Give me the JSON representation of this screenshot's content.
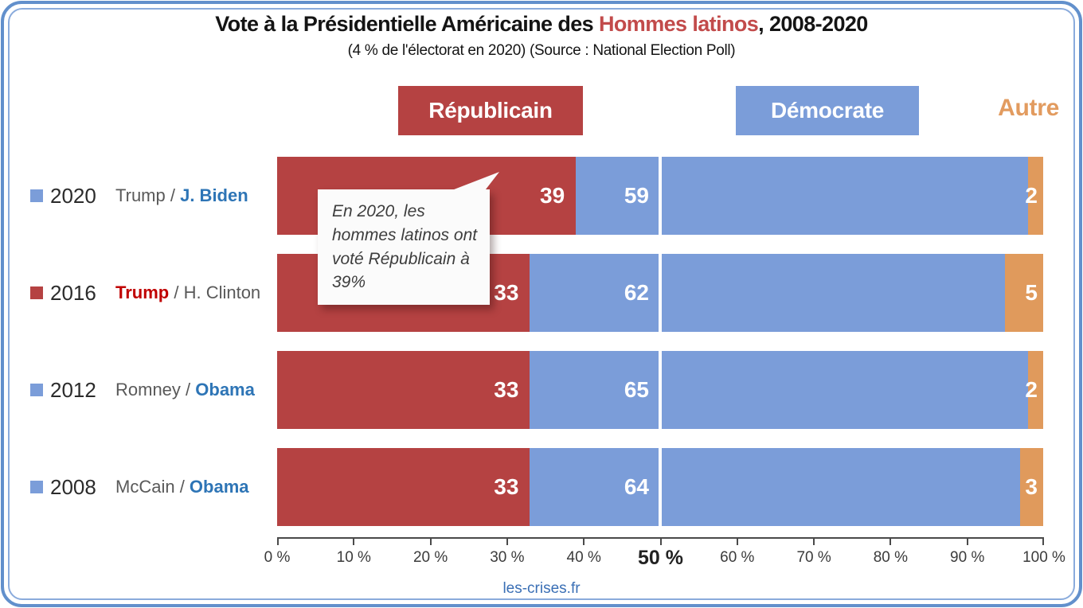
{
  "header": {
    "title_prefix": "Vote à la Présidentielle Américaine des ",
    "title_highlight": "Hommes latinos",
    "title_suffix": ", 2008-2020",
    "subtitle": "(4 % de l'électorat en 2020) (Source : National Election Poll)"
  },
  "legend": [
    {
      "label": "Républicain",
      "style": "box",
      "bg": "#b54242",
      "text_color": "#ffffff"
    },
    {
      "label": "Démocrate",
      "style": "box",
      "bg": "#7b9dd9",
      "text_color": "#ffffff"
    },
    {
      "label": "Autre",
      "style": "text",
      "text_color": "#e29b5f"
    }
  ],
  "annotation": {
    "text": "En 2020, les hommes latinos ont voté Républicain à 39%"
  },
  "footer": {
    "site": "les-crises.fr"
  },
  "chart_data": {
    "type": "bar",
    "orientation": "horizontal-stacked",
    "title": "Vote à la Présidentielle Américaine des Hommes latinos, 2008-2020",
    "categories": [
      "2020",
      "2016",
      "2012",
      "2008"
    ],
    "rows": [
      {
        "year": "2020",
        "marker_color": "#7b9dd9",
        "matchup": [
          {
            "text": "Trump",
            "color": "#595959",
            "bold": false
          },
          {
            "text": " / ",
            "color": "#595959",
            "bold": false
          },
          {
            "text": "J. Biden",
            "color": "#2e75b6",
            "bold": true
          }
        ]
      },
      {
        "year": "2016",
        "marker_color": "#b54242",
        "matchup": [
          {
            "text": "Trump",
            "color": "#c00000",
            "bold": true
          },
          {
            "text": " / ",
            "color": "#595959",
            "bold": false
          },
          {
            "text": "H. Clinton",
            "color": "#595959",
            "bold": false
          }
        ]
      },
      {
        "year": "2012",
        "marker_color": "#7b9dd9",
        "matchup": [
          {
            "text": "Romney",
            "color": "#595959",
            "bold": false
          },
          {
            "text": " / ",
            "color": "#595959",
            "bold": false
          },
          {
            "text": "Obama",
            "color": "#2e75b6",
            "bold": true
          }
        ]
      },
      {
        "year": "2008",
        "marker_color": "#7b9dd9",
        "matchup": [
          {
            "text": "McCain",
            "color": "#595959",
            "bold": false
          },
          {
            "text": " / ",
            "color": "#595959",
            "bold": false
          },
          {
            "text": "Obama",
            "color": "#2e75b6",
            "bold": true
          }
        ]
      }
    ],
    "series": [
      {
        "name": "Républicain",
        "color": "#b54242",
        "values": [
          39,
          33,
          33,
          33
        ]
      },
      {
        "name": "Démocrate",
        "color": "#7b9dd9",
        "values": [
          59,
          62,
          65,
          64
        ]
      },
      {
        "name": "Autre",
        "color": "#e09a5c",
        "values": [
          2,
          5,
          2,
          3
        ]
      }
    ],
    "xlim": [
      0,
      100
    ],
    "x_ticks": [
      "0 %",
      "10 %",
      "20 %",
      "30 %",
      "40 %",
      "50 %",
      "60 %",
      "70 %",
      "80 %",
      "90 %",
      "100 %"
    ],
    "emphasized_tick_index": 5,
    "reference_line_pct": 50,
    "grid": false,
    "legend_position": "top"
  }
}
